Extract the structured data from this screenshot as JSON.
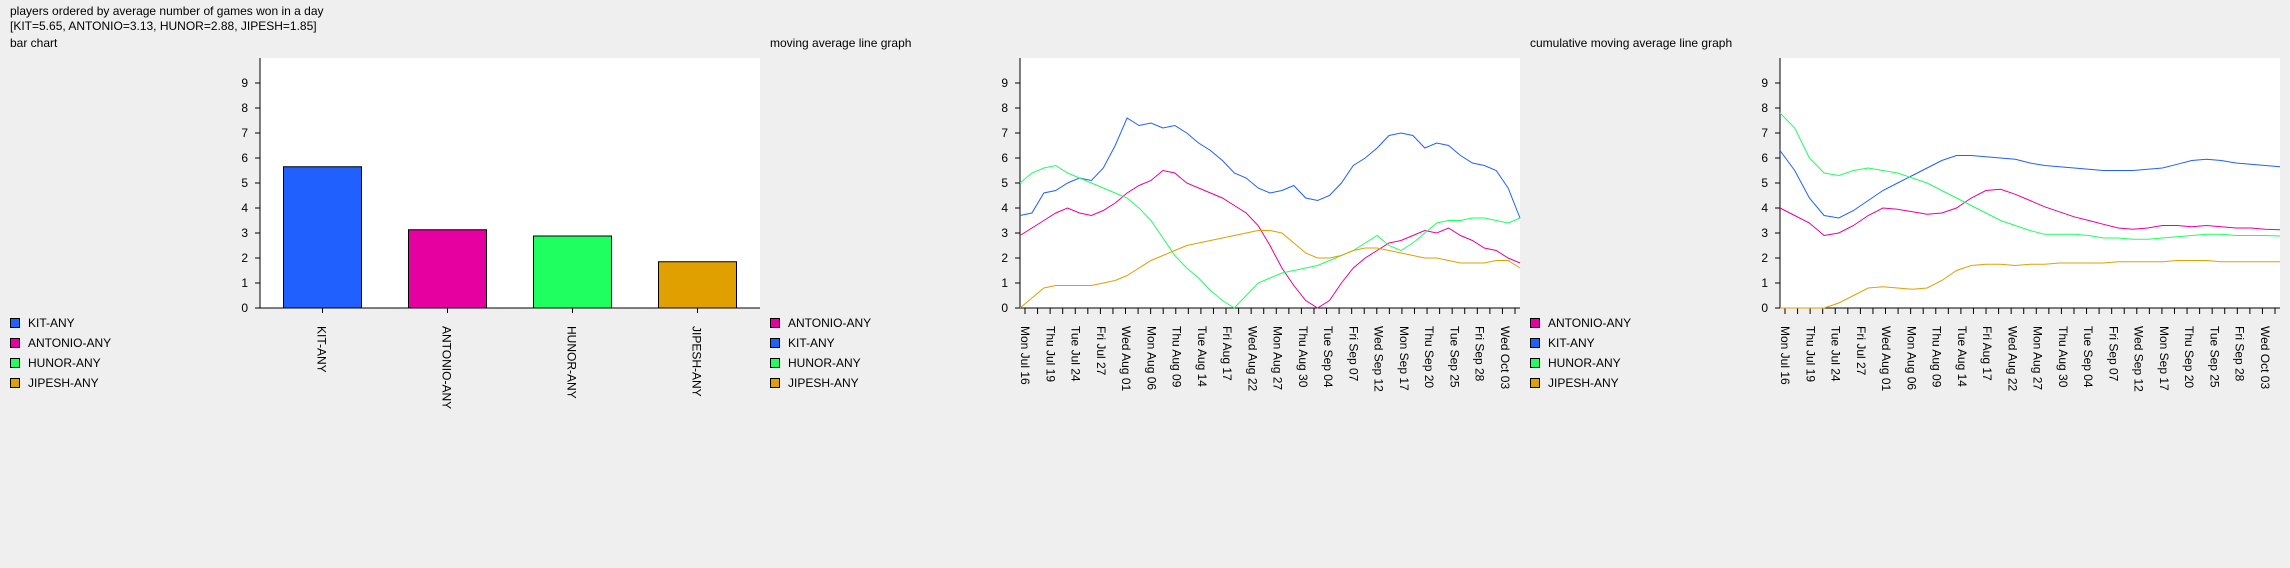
{
  "header": {
    "title": "players ordered by average number of games won in a day",
    "values": "[KIT=5.65, ANTONIO=3.13, HUNOR=2.88, JIPESH=1.85]"
  },
  "labels": {
    "bar": "bar chart",
    "moving": "moving average line graph",
    "cumulative": "cumulative moving average line graph"
  },
  "colors": {
    "KIT": "#2060ff",
    "ANTONIO": "#e600a0",
    "HUNOR": "#20ff60",
    "JIPESH": "#e0a000"
  },
  "chart_data": [
    {
      "type": "bar",
      "categories": [
        "KIT-ANY",
        "ANTONIO-ANY",
        "HUNOR-ANY",
        "JIPESH-ANY"
      ],
      "values": [
        5.65,
        3.13,
        2.88,
        1.85
      ],
      "ylim": [
        0,
        10
      ],
      "yticks": [
        0,
        1,
        2,
        3,
        4,
        5,
        6,
        7,
        8,
        9
      ],
      "legend": [
        "KIT-ANY",
        "ANTONIO-ANY",
        "HUNOR-ANY",
        "JIPESH-ANY"
      ],
      "legend_position": "left"
    },
    {
      "type": "line",
      "ylim": [
        0,
        10
      ],
      "yticks": [
        0,
        1,
        2,
        3,
        4,
        5,
        6,
        7,
        8,
        9
      ],
      "xtick_labels": [
        "Mon Jul 16",
        "Thu Jul 19",
        "Tue Jul 24",
        "Fri Jul 27",
        "Wed Aug 01",
        "Mon Aug 06",
        "Thu Aug 09",
        "Tue Aug 14",
        "Fri Aug 17",
        "Wed Aug 22",
        "Mon Aug 27",
        "Thu Aug 30",
        "Tue Sep 04",
        "Fri Sep 07",
        "Wed Sep 12",
        "Mon Sep 17",
        "Thu Sep 20",
        "Tue Sep 25",
        "Fri Sep 28",
        "Wed Oct 03"
      ],
      "legend": [
        "ANTONIO-ANY",
        "KIT-ANY",
        "HUNOR-ANY",
        "JIPESH-ANY"
      ],
      "legend_position": "left",
      "series": [
        {
          "name": "KIT-ANY",
          "values": [
            3.7,
            3.8,
            4.6,
            4.7,
            5.0,
            5.2,
            5.1,
            5.6,
            6.5,
            7.6,
            7.3,
            7.4,
            7.2,
            7.3,
            7.0,
            6.6,
            6.3,
            5.9,
            5.4,
            5.2,
            4.8,
            4.6,
            4.7,
            4.9,
            4.4,
            4.3,
            4.5,
            5.0,
            5.7,
            6.0,
            6.4,
            6.9,
            7.0,
            6.9,
            6.4,
            6.6,
            6.5,
            6.1,
            5.8,
            5.7,
            5.5,
            4.8,
            3.6
          ]
        },
        {
          "name": "ANTONIO-ANY",
          "values": [
            2.9,
            3.2,
            3.5,
            3.8,
            4.0,
            3.8,
            3.7,
            3.9,
            4.2,
            4.6,
            4.9,
            5.1,
            5.5,
            5.4,
            5.0,
            4.8,
            4.6,
            4.4,
            4.1,
            3.8,
            3.3,
            2.5,
            1.6,
            0.9,
            0.3,
            0.0,
            0.3,
            1.0,
            1.6,
            2.0,
            2.3,
            2.6,
            2.7,
            2.9,
            3.1,
            3.0,
            3.2,
            2.9,
            2.7,
            2.4,
            2.3,
            2.0,
            1.8
          ]
        },
        {
          "name": "HUNOR-ANY",
          "values": [
            5.0,
            5.4,
            5.6,
            5.7,
            5.4,
            5.2,
            5.0,
            4.8,
            4.6,
            4.4,
            4.0,
            3.5,
            2.8,
            2.1,
            1.6,
            1.2,
            0.7,
            0.3,
            0.0,
            0.5,
            1.0,
            1.2,
            1.4,
            1.5,
            1.6,
            1.7,
            1.9,
            2.1,
            2.3,
            2.6,
            2.9,
            2.5,
            2.3,
            2.6,
            3.0,
            3.4,
            3.5,
            3.5,
            3.6,
            3.6,
            3.5,
            3.4,
            3.6
          ]
        },
        {
          "name": "JIPESH-ANY",
          "values": [
            0.0,
            0.4,
            0.8,
            0.9,
            0.9,
            0.9,
            0.9,
            1.0,
            1.1,
            1.3,
            1.6,
            1.9,
            2.1,
            2.3,
            2.5,
            2.6,
            2.7,
            2.8,
            2.9,
            3.0,
            3.1,
            3.1,
            3.0,
            2.6,
            2.2,
            2.0,
            2.0,
            2.1,
            2.3,
            2.4,
            2.4,
            2.3,
            2.2,
            2.1,
            2.0,
            2.0,
            1.9,
            1.8,
            1.8,
            1.8,
            1.9,
            1.9,
            1.6
          ]
        }
      ]
    },
    {
      "type": "line",
      "ylim": [
        0,
        10
      ],
      "yticks": [
        0,
        1,
        2,
        3,
        4,
        5,
        6,
        7,
        8,
        9
      ],
      "xtick_labels": [
        "Mon Jul 16",
        "Thu Jul 19",
        "Tue Jul 24",
        "Fri Jul 27",
        "Wed Aug 01",
        "Mon Aug 06",
        "Thu Aug 09",
        "Tue Aug 14",
        "Fri Aug 17",
        "Wed Aug 22",
        "Mon Aug 27",
        "Thu Aug 30",
        "Tue Sep 04",
        "Fri Sep 07",
        "Wed Sep 12",
        "Mon Sep 17",
        "Thu Sep 20",
        "Tue Sep 25",
        "Fri Sep 28",
        "Wed Oct 03"
      ],
      "legend": [
        "ANTONIO-ANY",
        "KIT-ANY",
        "HUNOR-ANY",
        "JIPESH-ANY"
      ],
      "legend_position": "left",
      "series": [
        {
          "name": "KIT-ANY",
          "values": [
            6.3,
            5.5,
            4.4,
            3.7,
            3.6,
            3.9,
            4.3,
            4.7,
            5.0,
            5.3,
            5.6,
            5.9,
            6.1,
            6.1,
            6.05,
            6.0,
            5.95,
            5.8,
            5.7,
            5.65,
            5.6,
            5.55,
            5.5,
            5.5,
            5.5,
            5.55,
            5.6,
            5.75,
            5.9,
            5.95,
            5.9,
            5.8,
            5.75,
            5.7,
            5.65
          ]
        },
        {
          "name": "ANTONIO-ANY",
          "values": [
            4.0,
            3.7,
            3.4,
            2.9,
            3.0,
            3.3,
            3.7,
            4.0,
            3.95,
            3.85,
            3.75,
            3.8,
            4.0,
            4.4,
            4.7,
            4.75,
            4.55,
            4.3,
            4.05,
            3.85,
            3.65,
            3.5,
            3.35,
            3.2,
            3.15,
            3.2,
            3.3,
            3.3,
            3.25,
            3.3,
            3.25,
            3.2,
            3.2,
            3.15,
            3.13
          ]
        },
        {
          "name": "HUNOR-ANY",
          "values": [
            7.8,
            7.2,
            6.0,
            5.4,
            5.3,
            5.5,
            5.6,
            5.5,
            5.4,
            5.2,
            5.0,
            4.7,
            4.4,
            4.1,
            3.8,
            3.5,
            3.3,
            3.1,
            2.95,
            2.95,
            2.95,
            2.9,
            2.8,
            2.8,
            2.75,
            2.75,
            2.8,
            2.85,
            2.9,
            2.95,
            2.95,
            2.9,
            2.9,
            2.9,
            2.88
          ]
        },
        {
          "name": "JIPESH-ANY",
          "values": [
            0.0,
            0.0,
            0.0,
            0.0,
            0.2,
            0.5,
            0.8,
            0.85,
            0.8,
            0.75,
            0.8,
            1.1,
            1.5,
            1.7,
            1.75,
            1.75,
            1.7,
            1.75,
            1.75,
            1.8,
            1.8,
            1.8,
            1.8,
            1.85,
            1.85,
            1.85,
            1.85,
            1.9,
            1.9,
            1.9,
            1.85,
            1.85,
            1.85,
            1.85,
            1.85
          ]
        }
      ]
    }
  ]
}
